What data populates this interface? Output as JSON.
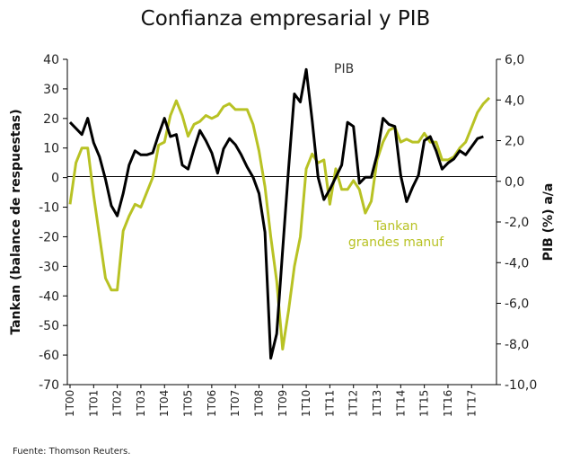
{
  "chart_data": {
    "type": "line",
    "title": "Confianza empresarial  y PIB",
    "ylabel_left": "Tankan (balance de respuestas)",
    "ylabel_right": "PIB (%) a/a",
    "ylim_left": [
      -70,
      40
    ],
    "ylim_right": [
      -10,
      6
    ],
    "yticks_left": [
      "40",
      "30",
      "20",
      "10",
      "0",
      "-10",
      "-20",
      "-30",
      "-40",
      "-50",
      "-60",
      "-70"
    ],
    "yticks_right": [
      "6,0",
      "4,0",
      "2,0",
      "0,0",
      "-2,0",
      "-4,0",
      "-6,0",
      "-8,0",
      "-10,0"
    ],
    "xticks": [
      "1T00",
      "1T01",
      "1T02",
      "1T03",
      "1T04",
      "1T05",
      "1T06",
      "1T07",
      "1T08",
      "1T09",
      "1T10",
      "1T11",
      "1T12",
      "1T13",
      "1T14",
      "1T15",
      "1T16",
      "1T17"
    ],
    "grid": false,
    "colors": {
      "pib": "#000000",
      "tankan": "#b8c224"
    },
    "series": [
      {
        "name": "PIB",
        "label": "PIB",
        "axis": "right",
        "x": [
          0,
          0.5,
          0.75,
          1,
          1.25,
          1.5,
          1.75,
          2,
          2.25,
          2.5,
          2.75,
          3,
          3.25,
          3.5,
          3.75,
          4,
          4.25,
          4.5,
          4.75,
          5,
          5.25,
          5.5,
          5.75,
          6,
          6.25,
          6.5,
          6.75,
          7,
          7.25,
          7.5,
          7.75,
          8,
          8.25,
          8.5,
          8.75,
          9,
          9.25,
          9.5,
          9.75,
          10,
          10.25,
          10.5,
          10.75,
          11,
          11.25,
          11.5,
          11.75,
          12,
          12.25,
          12.5,
          12.75,
          13,
          13.25,
          13.5,
          13.75,
          14,
          14.25,
          14.5,
          14.75,
          15,
          15.25,
          15.5,
          15.75,
          16,
          16.25,
          16.5,
          16.75,
          17,
          17.25,
          17.5
        ],
        "values": [
          2.9,
          2.3,
          3.1,
          1.9,
          1.2,
          0.1,
          -1.2,
          -1.7,
          -0.6,
          0.8,
          1.5,
          1.3,
          1.3,
          1.4,
          2.3,
          3.1,
          2.2,
          2.3,
          0.8,
          0.6,
          1.6,
          2.5,
          2.0,
          1.4,
          0.4,
          1.6,
          2.1,
          1.8,
          1.3,
          0.7,
          0.2,
          -0.6,
          -2.5,
          -8.7,
          -7.5,
          -3.4,
          0.6,
          4.3,
          3.9,
          5.5,
          3.0,
          0.2,
          -0.9,
          -0.4,
          0.2,
          0.8,
          2.9,
          2.7,
          -0.1,
          0.2,
          0.2,
          1.3,
          3.1,
          2.8,
          2.7,
          0.3,
          -1.0,
          -0.3,
          0.3,
          2.0,
          2.2,
          1.5,
          0.6,
          0.9,
          1.1,
          1.5,
          1.3,
          1.7,
          2.1,
          2.2
        ]
      },
      {
        "name": "Tankan grandes manuf",
        "label_line1": "Tankan",
        "label_line2": "grandes manuf",
        "axis": "left",
        "x": [
          0,
          0.25,
          0.5,
          0.75,
          1,
          1.25,
          1.5,
          1.75,
          2,
          2.25,
          2.5,
          2.75,
          3,
          3.25,
          3.5,
          3.75,
          4,
          4.25,
          4.5,
          4.75,
          5,
          5.25,
          5.5,
          5.75,
          6,
          6.25,
          6.5,
          6.75,
          7,
          7.25,
          7.5,
          7.75,
          8,
          8.25,
          8.5,
          8.75,
          9,
          9.25,
          9.5,
          9.75,
          10,
          10.25,
          10.5,
          10.75,
          11,
          11.25,
          11.5,
          11.75,
          12,
          12.25,
          12.5,
          12.75,
          13,
          13.25,
          13.5,
          13.75,
          14,
          14.25,
          14.5,
          14.75,
          15,
          15.25,
          15.5,
          15.75,
          16,
          16.25,
          16.5,
          16.75,
          17,
          17.25,
          17.5,
          17.75
        ],
        "values": [
          -9,
          5,
          10,
          10,
          -6,
          -20,
          -34,
          -38,
          -38,
          -18,
          -13,
          -9,
          -10,
          -5,
          0,
          11,
          12,
          21,
          26,
          21,
          14,
          18,
          19,
          21,
          20,
          21,
          24,
          25,
          23,
          23,
          23,
          18,
          9,
          -3,
          -20,
          -35,
          -58,
          -45,
          -30,
          -20,
          3,
          8,
          5,
          6,
          -9,
          3,
          -4,
          -4,
          -1,
          -4,
          -12,
          -8,
          6,
          12,
          16,
          17,
          12,
          13,
          12,
          12,
          15,
          12,
          12,
          6,
          6,
          7,
          10,
          12,
          17,
          22,
          25,
          27
        ]
      }
    ],
    "source": "Fuente: Thomson Reuters."
  }
}
